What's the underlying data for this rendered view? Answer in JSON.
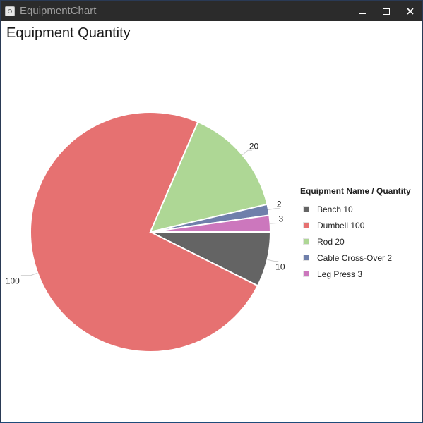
{
  "window": {
    "title": "EquipmentChart",
    "minimize_icon": "minimize-icon",
    "maximize_icon": "maximize-icon",
    "close_icon": "close-icon"
  },
  "chart_data": {
    "type": "pie",
    "title": "Equipment Quantity",
    "legend_title": "Equipment Name / Quantity",
    "legend_position": "right",
    "categories": [
      "Bench",
      "Dumbell",
      "Rod",
      "Cable Cross-Over",
      "Leg Press"
    ],
    "values": [
      10,
      100,
      20,
      2,
      3
    ],
    "legend_labels": [
      "Bench 10",
      "Dumbell 100",
      "Rod 20",
      "Cable Cross-Over 2",
      "Leg Press 3"
    ],
    "data_labels": [
      "10",
      "100",
      "20",
      "2",
      "3"
    ],
    "colors": [
      "#646464",
      "#e67171",
      "#aed795",
      "#6f7fab",
      "#cc77bd"
    ]
  }
}
